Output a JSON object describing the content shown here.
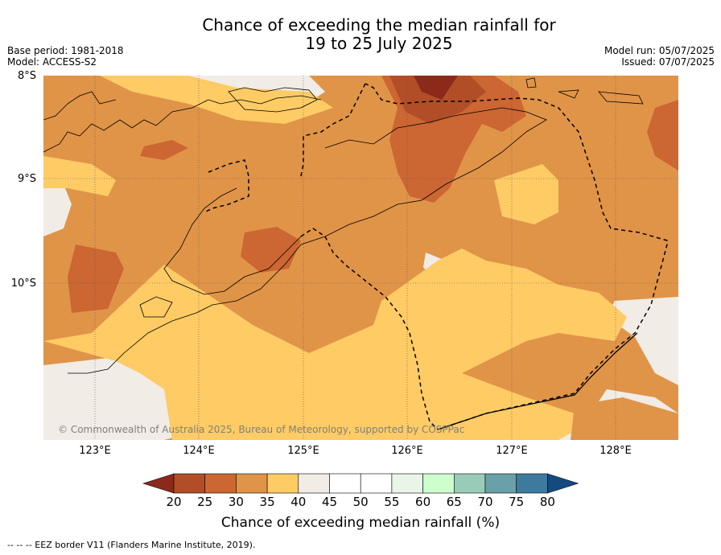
{
  "title_line1": "Chance of exceeding the median rainfall for",
  "title_line2": "19 to 25 July 2025",
  "base_period": "Base period: 1981-2018",
  "model": "Model: ACCESS-S2",
  "model_run": "Model run: 05/07/2025",
  "issued": "Issued: 07/07/2025",
  "copyright": "© Commonwealth of Australia 2025, Bureau of Meteorology, supported by COSPPac",
  "lat_labels": [
    "8°S",
    "9°S",
    "10°S"
  ],
  "lon_labels": [
    "123°E",
    "124°E",
    "125°E",
    "126°E",
    "127°E",
    "128°E"
  ],
  "colorbar": {
    "ticks": [
      "20",
      "25",
      "30",
      "35",
      "40",
      "45",
      "50",
      "55",
      "60",
      "65",
      "70",
      "75",
      "80"
    ],
    "colors": [
      "#8b2a1a",
      "#b14e27",
      "#cc6632",
      "#e09448",
      "#fecb65",
      "#f1ece6",
      "#ffffff",
      "#ffffff",
      "#e8f5e8",
      "#ccffcc",
      "#99ccb8",
      "#6aa0a8",
      "#3d7a9e",
      "#154a80"
    ],
    "label": "Chance of exceeding median rainfall (%)"
  },
  "footnote": "--  --  -- EEZ border V11 (Flanders Marine Institute, 2019).",
  "map_colors": {
    "c20": "#8b2a1a",
    "c25": "#b14e27",
    "c30": "#cc6632",
    "c35": "#e09448",
    "c40": "#fecb65",
    "c45": "#f1ece6"
  }
}
